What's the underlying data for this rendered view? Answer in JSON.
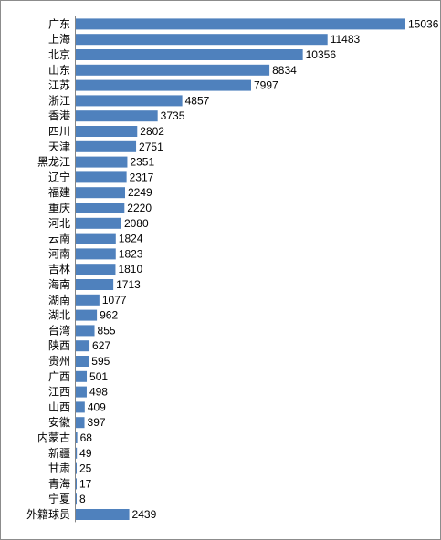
{
  "chart_data": {
    "type": "bar",
    "orientation": "horizontal",
    "title": "",
    "xlabel": "",
    "ylabel": "",
    "grid": false,
    "legend": "none",
    "bar_color": "#4F81BD",
    "categories": [
      "广东",
      "上海",
      "北京",
      "山东",
      "江苏",
      "浙江",
      "香港",
      "四川",
      "天津",
      "黑龙江",
      "辽宁",
      "福建",
      "重庆",
      "河北",
      "云南",
      "河南",
      "吉林",
      "海南",
      "湖南",
      "湖北",
      "台湾",
      "陕西",
      "贵州",
      "广西",
      "江西",
      "山西",
      "安徽",
      "内蒙古",
      "新疆",
      "甘肃",
      "青海",
      "宁夏",
      "外籍球员"
    ],
    "values": [
      15036,
      11483,
      10356,
      8834,
      7997,
      4857,
      3735,
      2802,
      2751,
      2351,
      2317,
      2249,
      2220,
      2080,
      1824,
      1823,
      1810,
      1713,
      1077,
      962,
      855,
      627,
      595,
      501,
      498,
      409,
      397,
      68,
      49,
      25,
      17,
      8,
      2439
    ],
    "xlim": [
      0,
      15036
    ]
  }
}
